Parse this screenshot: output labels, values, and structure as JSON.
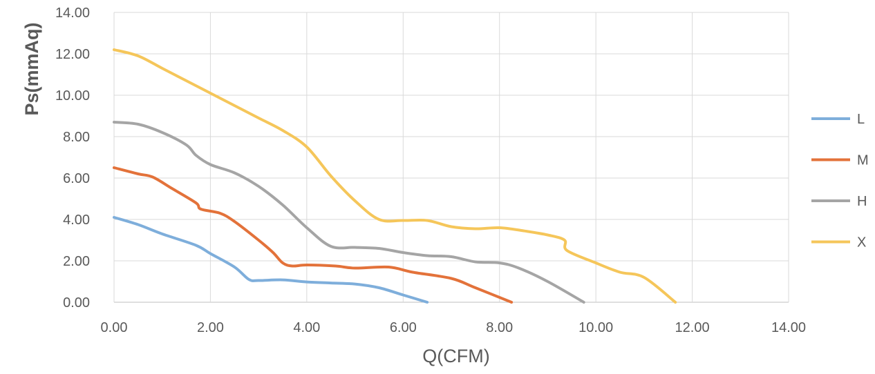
{
  "chart_data": {
    "type": "line",
    "title": "",
    "xlabel": "Q(CFM)",
    "ylabel": "Ps(mmAq)",
    "xlim": [
      0,
      14
    ],
    "ylim": [
      0,
      14
    ],
    "xticks": [
      "0.00",
      "2.00",
      "4.00",
      "6.00",
      "8.00",
      "10.00",
      "12.00",
      "14.00"
    ],
    "yticks": [
      "0.00",
      "2.00",
      "4.00",
      "6.00",
      "8.00",
      "10.00",
      "12.00",
      "14.00"
    ],
    "grid": true,
    "legend_position": "right",
    "series": [
      {
        "name": "L",
        "color": "#7EAEDB",
        "points": [
          [
            0,
            4.1
          ],
          [
            0.5,
            3.75
          ],
          [
            1.0,
            3.3
          ],
          [
            1.7,
            2.75
          ],
          [
            2.0,
            2.35
          ],
          [
            2.5,
            1.7
          ],
          [
            2.8,
            1.1
          ],
          [
            3.0,
            1.05
          ],
          [
            3.5,
            1.08
          ],
          [
            4.0,
            0.98
          ],
          [
            4.5,
            0.93
          ],
          [
            5.0,
            0.88
          ],
          [
            5.5,
            0.7
          ],
          [
            6.0,
            0.35
          ],
          [
            6.5,
            0.0
          ]
        ]
      },
      {
        "name": "M",
        "color": "#E3723A",
        "points": [
          [
            0,
            6.5
          ],
          [
            0.5,
            6.2
          ],
          [
            0.8,
            6.05
          ],
          [
            1.2,
            5.5
          ],
          [
            1.7,
            4.8
          ],
          [
            1.8,
            4.5
          ],
          [
            2.2,
            4.3
          ],
          [
            2.5,
            3.9
          ],
          [
            3.0,
            3.0
          ],
          [
            3.3,
            2.4
          ],
          [
            3.5,
            1.9
          ],
          [
            3.7,
            1.75
          ],
          [
            4.0,
            1.8
          ],
          [
            4.6,
            1.75
          ],
          [
            5.0,
            1.65
          ],
          [
            5.7,
            1.7
          ],
          [
            6.2,
            1.45
          ],
          [
            7.0,
            1.15
          ],
          [
            7.5,
            0.7
          ],
          [
            8.25,
            0.0
          ]
        ]
      },
      {
        "name": "H",
        "color": "#A5A5A5",
        "points": [
          [
            0,
            8.7
          ],
          [
            0.5,
            8.6
          ],
          [
            1.0,
            8.2
          ],
          [
            1.5,
            7.6
          ],
          [
            1.7,
            7.1
          ],
          [
            2.0,
            6.65
          ],
          [
            2.5,
            6.25
          ],
          [
            3.0,
            5.6
          ],
          [
            3.5,
            4.7
          ],
          [
            4.0,
            3.6
          ],
          [
            4.5,
            2.7
          ],
          [
            5.0,
            2.65
          ],
          [
            5.5,
            2.6
          ],
          [
            6.0,
            2.4
          ],
          [
            6.5,
            2.25
          ],
          [
            7.0,
            2.2
          ],
          [
            7.5,
            1.95
          ],
          [
            8.0,
            1.9
          ],
          [
            8.4,
            1.65
          ],
          [
            9.0,
            1.0
          ],
          [
            9.75,
            0.0
          ]
        ]
      },
      {
        "name": "X",
        "color": "#F5C65A",
        "points": [
          [
            0,
            12.2
          ],
          [
            0.5,
            11.9
          ],
          [
            1.0,
            11.3
          ],
          [
            1.5,
            10.7
          ],
          [
            2.0,
            10.1
          ],
          [
            2.5,
            9.5
          ],
          [
            3.0,
            8.9
          ],
          [
            3.5,
            8.3
          ],
          [
            4.0,
            7.5
          ],
          [
            4.5,
            6.1
          ],
          [
            5.0,
            4.9
          ],
          [
            5.5,
            4.0
          ],
          [
            6.0,
            3.95
          ],
          [
            6.5,
            3.95
          ],
          [
            7.0,
            3.65
          ],
          [
            7.5,
            3.55
          ],
          [
            8.0,
            3.6
          ],
          [
            8.5,
            3.45
          ],
          [
            9.0,
            3.25
          ],
          [
            9.35,
            3.0
          ],
          [
            9.4,
            2.5
          ],
          [
            10.0,
            1.9
          ],
          [
            10.5,
            1.45
          ],
          [
            11.0,
            1.2
          ],
          [
            11.65,
            0.0
          ]
        ]
      }
    ]
  }
}
